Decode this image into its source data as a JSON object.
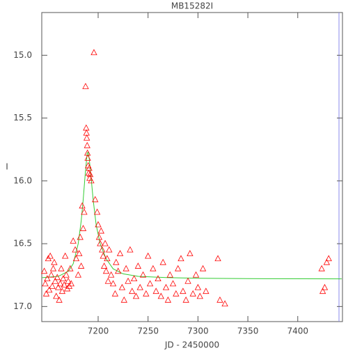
{
  "chart_data": {
    "type": "scatter",
    "title": "MB15282I",
    "x_label": "JD - 2450000",
    "y_label": "I",
    "xlim": [
      7143.5,
      7444.8
    ],
    "ylim": [
      17.12,
      14.66
    ],
    "xticks": [
      7200,
      7250,
      7300,
      7350,
      7400
    ],
    "yticks": [
      {
        "value": 15.0,
        "label": "15.0"
      },
      15.5,
      {
        "value": 16.0,
        "label": "16.0"
      },
      16.5,
      {
        "value": 17.0,
        "label": "17.0"
      }
    ],
    "points": {
      "color": "#ff0000",
      "x": [
        7146,
        7147,
        7148,
        7149,
        7150,
        7151,
        7152,
        7153,
        7154,
        7155,
        7156,
        7157,
        7158,
        7159,
        7160,
        7161,
        7162,
        7163,
        7164,
        7165,
        7166,
        7167,
        7168,
        7169,
        7170,
        7171,
        7172,
        7173,
        7175,
        7177,
        7178,
        7180,
        7181,
        7182,
        7183,
        7184,
        7185,
        7186,
        7187.4,
        7188,
        7188.3,
        7188.6,
        7189,
        7189.3,
        7189.6,
        7190,
        7190.5,
        7191,
        7191.5,
        7192,
        7193,
        7195.8,
        7197,
        7199,
        7200,
        7201,
        7202,
        7203,
        7204,
        7205,
        7206,
        7207,
        7208,
        7209,
        7210,
        7211,
        7213,
        7215,
        7217,
        7218,
        7220,
        7222,
        7224,
        7226,
        7228,
        7230,
        7232,
        7234,
        7236,
        7238,
        7240,
        7242,
        7245,
        7248,
        7250,
        7252,
        7255,
        7258,
        7260,
        7263,
        7265,
        7268,
        7270,
        7272,
        7275,
        7278,
        7280,
        7283,
        7285,
        7288,
        7290,
        7292,
        7295,
        7298,
        7300,
        7302,
        7305,
        7308,
        7320,
        7322,
        7327,
        7424,
        7425,
        7427,
        7429,
        7431
      ],
      "y": [
        16.72,
        16.82,
        16.9,
        16.78,
        16.62,
        16.87,
        16.6,
        16.75,
        16.84,
        16.7,
        16.65,
        16.8,
        16.92,
        16.77,
        16.85,
        16.95,
        16.82,
        16.7,
        16.88,
        16.78,
        16.83,
        16.6,
        16.75,
        16.86,
        16.8,
        16.84,
        16.7,
        16.82,
        16.48,
        16.55,
        16.62,
        16.75,
        16.58,
        16.45,
        16.68,
        16.2,
        16.38,
        16.25,
        15.25,
        15.58,
        15.62,
        15.66,
        15.72,
        15.78,
        15.82,
        15.88,
        15.94,
        15.9,
        15.98,
        15.95,
        16.0,
        14.98,
        16.15,
        16.25,
        16.35,
        16.45,
        16.5,
        16.4,
        16.55,
        16.6,
        16.68,
        16.5,
        16.72,
        16.62,
        16.8,
        16.55,
        16.75,
        16.82,
        16.9,
        16.65,
        16.72,
        16.58,
        16.85,
        16.95,
        16.7,
        16.8,
        16.55,
        16.88,
        16.78,
        16.92,
        16.68,
        16.85,
        16.75,
        16.9,
        16.6,
        16.82,
        16.7,
        16.88,
        16.78,
        16.92,
        16.65,
        16.85,
        16.95,
        16.75,
        16.82,
        16.9,
        16.7,
        16.62,
        16.88,
        16.95,
        16.8,
        16.58,
        16.9,
        16.75,
        16.85,
        16.92,
        16.7,
        16.88,
        16.62,
        16.95,
        16.98,
        16.7,
        16.88,
        16.85,
        16.65,
        16.62
      ]
    },
    "fit": {
      "color": "#33cc33",
      "x": [
        7144,
        7160,
        7170,
        7175,
        7180,
        7183,
        7185,
        7187,
        7189,
        7190,
        7191,
        7193,
        7195,
        7198,
        7202,
        7208,
        7215,
        7225,
        7240,
        7270,
        7300,
        7350,
        7444
      ],
      "y": [
        16.77,
        16.76,
        16.72,
        16.66,
        16.5,
        16.32,
        16.15,
        15.95,
        15.78,
        15.77,
        15.82,
        15.98,
        16.15,
        16.35,
        16.5,
        16.62,
        16.7,
        16.74,
        16.76,
        16.77,
        16.775,
        16.778,
        16.78
      ]
    }
  }
}
